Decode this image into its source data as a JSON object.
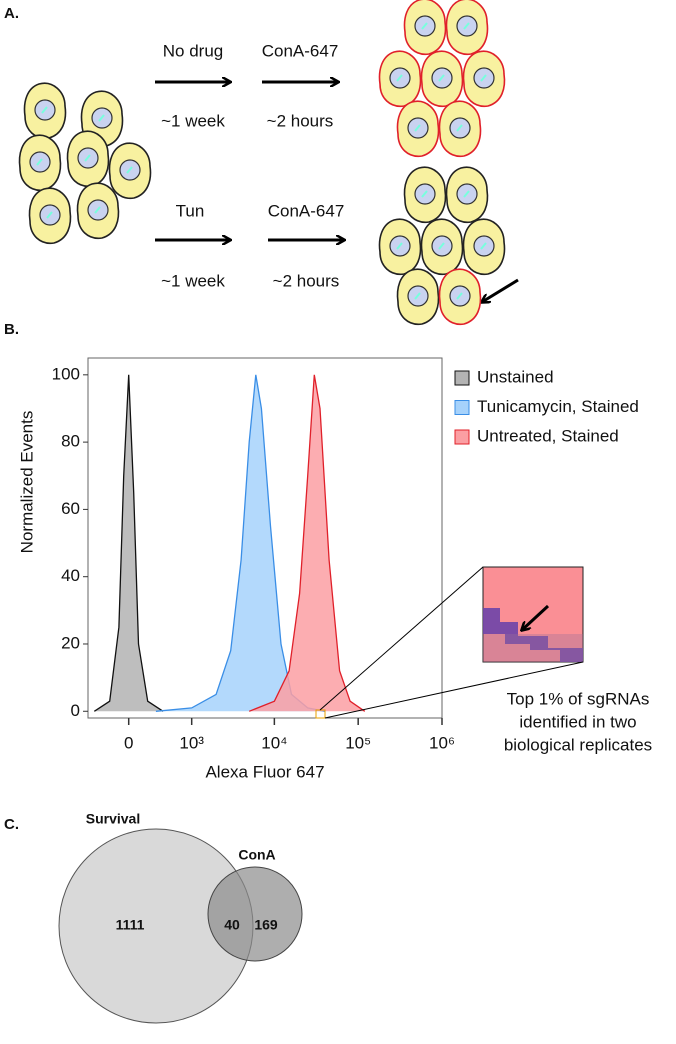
{
  "panel_a": {
    "label": "A.",
    "rows": [
      {
        "step1": "No drug",
        "time1": "~1 week",
        "step2": "ConA-647",
        "time2": "~2 hours"
      },
      {
        "step1": "Tun",
        "time1": "~1 week",
        "step2": "ConA-647",
        "time2": "~2 hours"
      }
    ]
  },
  "chart_data": {
    "type": "density",
    "panel_label": "B.",
    "x_label": "Alexa Fluor 647",
    "y_label": "Normalized Events",
    "x_scale": "biexponential",
    "xlim": [
      -500,
      1000000
    ],
    "ylim": [
      -2,
      105
    ],
    "xticks": [
      {
        "value": 0,
        "label": "0"
      },
      {
        "value": 1000,
        "label": "10³"
      },
      {
        "value": 10000,
        "label": "10⁴"
      },
      {
        "value": 100000,
        "label": "10⁵"
      },
      {
        "value": 1000000,
        "label": "10⁶"
      }
    ],
    "yticks": [
      0,
      20,
      40,
      60,
      80,
      100
    ],
    "series": [
      {
        "name": "Unstained",
        "color": "#b3b3b3",
        "stroke": "#111111",
        "x": [
          -400,
          -200,
          -100,
          -50,
          0,
          50,
          100,
          200,
          400
        ],
        "values": [
          0,
          3,
          25,
          70,
          100,
          65,
          20,
          3,
          0
        ]
      },
      {
        "name": "Tunicamycin, Stained",
        "color": "#a6d2fb",
        "stroke": "#3a8ee6",
        "x": [
          300,
          1000,
          2000,
          3000,
          4000,
          5000,
          6000,
          7000,
          9000,
          12000,
          16000,
          25000,
          40000
        ],
        "values": [
          0,
          1,
          5,
          18,
          45,
          80,
          100,
          90,
          55,
          20,
          5,
          1,
          0
        ]
      },
      {
        "name": "Untreated, Stained",
        "color": "#fb9fa3",
        "stroke": "#e0202a",
        "x": [
          5000,
          10000,
          15000,
          20000,
          25000,
          30000,
          35000,
          45000,
          60000,
          80000,
          120000
        ],
        "values": [
          0,
          3,
          12,
          35,
          70,
          100,
          90,
          45,
          12,
          3,
          0
        ]
      }
    ],
    "annotation": [
      "Top 1% of sgRNAs",
      "identified in two",
      "biological replicates"
    ]
  },
  "panel_c": {
    "label": "C.",
    "sets": [
      {
        "name": "Survival",
        "only": 1111
      },
      {
        "name": "ConA",
        "only": 169
      }
    ],
    "overlap": 40
  }
}
